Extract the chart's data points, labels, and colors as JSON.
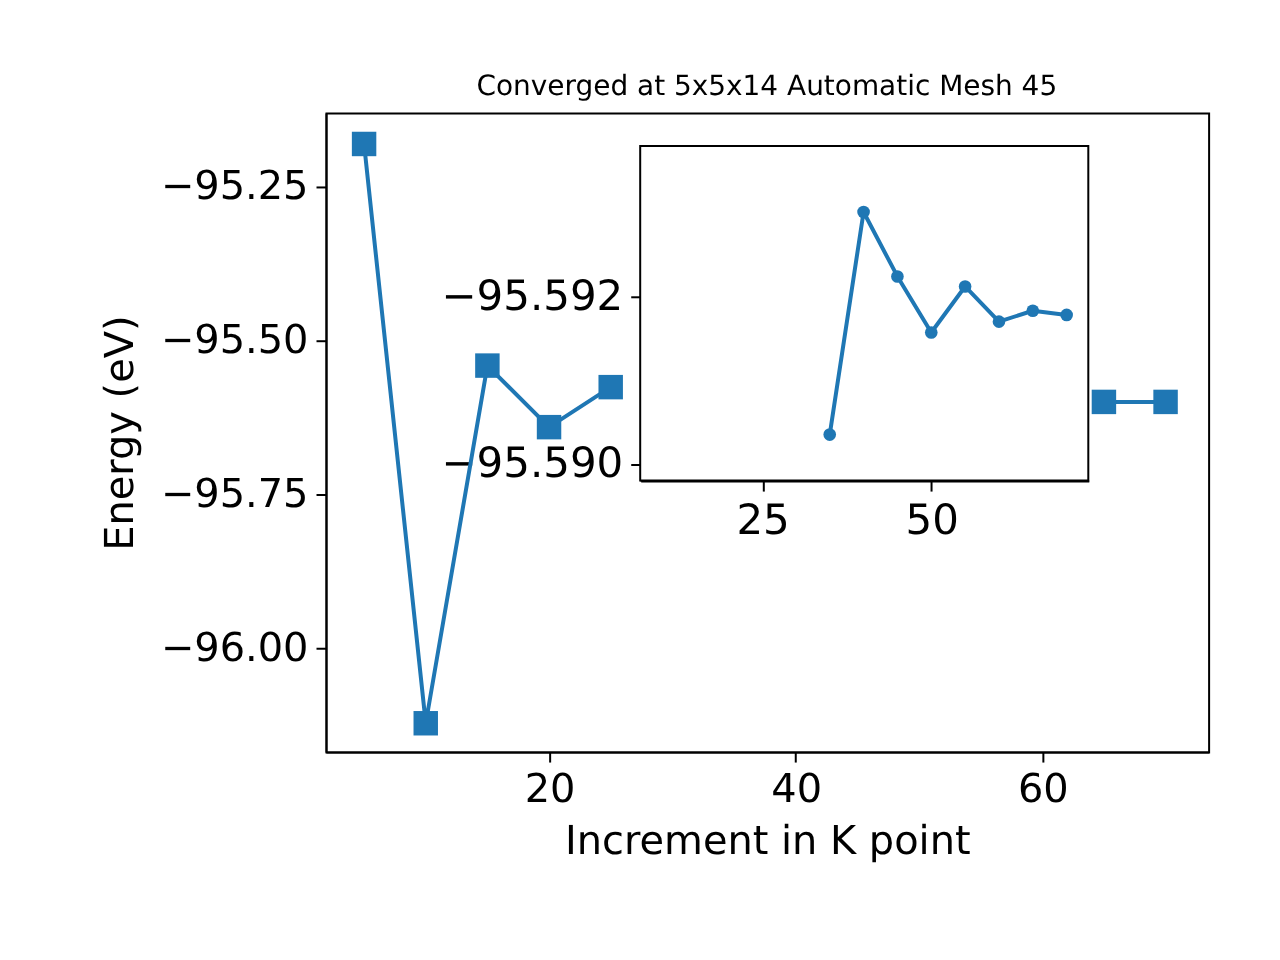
{
  "chart_data": [
    {
      "type": "line",
      "title": "Converged at 5x5x14 Automatic Mesh 45",
      "xlabel": "Increment in K point",
      "ylabel": "Energy (eV)",
      "marker": "square",
      "grid": false,
      "x": [
        5,
        10,
        15,
        20,
        25,
        30,
        35,
        40,
        45,
        50,
        55,
        60,
        65,
        70
      ],
      "series": [
        {
          "color": "#1f77b4",
          "values": [
            -95.181,
            -96.122,
            -95.541,
            -95.641,
            -95.576,
            null,
            null,
            null,
            null,
            null,
            null,
            null,
            -95.6,
            -95.6
          ]
        }
      ],
      "xlim": [
        1.87,
        73.45
      ],
      "ylim": [
        -96.168,
        -95.13
      ],
      "xticks": [
        20,
        40,
        60
      ],
      "yticks": [
        {
          "value": -95.25,
          "label": "−95.25"
        },
        {
          "value": -95.5,
          "label": "−95.50"
        },
        {
          "value": -95.75,
          "label": "−95.75"
        },
        {
          "value": -96,
          "label": "−96.00"
        }
      ]
    },
    {
      "type": "line",
      "marker": "circle",
      "grid": false,
      "x": [
        35,
        40,
        45,
        50,
        55,
        60,
        65,
        70
      ],
      "series": [
        {
          "color": "#1f77b4",
          "values": [
            -95.59035,
            -95.59301,
            -95.59224,
            -95.59157,
            -95.59212,
            -95.5917,
            -95.59183,
            -95.59178
          ]
        }
      ],
      "xlim": [
        7.0,
        73.2
      ],
      "ylim": [
        -95.5898,
        -95.5938
      ],
      "xticks": [
        25,
        50
      ],
      "yticks": [
        {
          "value": -95.592,
          "label": "−95.592"
        },
        {
          "value": -95.59,
          "label": "−95.590"
        }
      ]
    }
  ]
}
